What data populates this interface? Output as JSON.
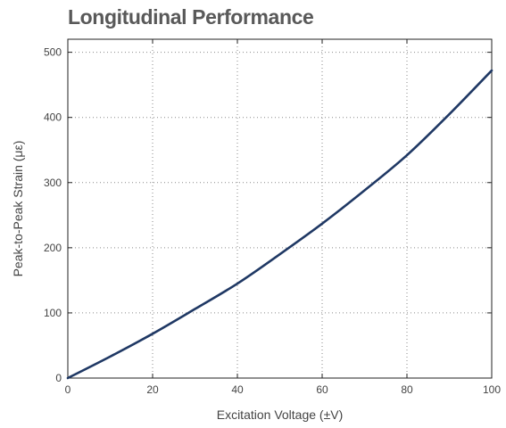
{
  "chart_data": {
    "type": "line",
    "title": "Longitudinal Performance",
    "xlabel": "Excitation Voltage (±V)",
    "ylabel": "Peak-to-Peak Strain (με)",
    "xlim": [
      0,
      100
    ],
    "ylim": [
      0,
      520
    ],
    "xticks": [
      "0",
      "20",
      "40",
      "60",
      "80",
      "100"
    ],
    "yticks": [
      "0",
      "100",
      "200",
      "300",
      "400",
      "500"
    ],
    "grid": true,
    "series": [
      {
        "color": "#1f3864",
        "x": [
          0,
          10,
          20,
          30,
          40,
          50,
          60,
          70,
          80,
          90,
          100
        ],
        "y": [
          0,
          33,
          68,
          106,
          145,
          190,
          237,
          288,
          342,
          405,
          472
        ]
      }
    ]
  }
}
